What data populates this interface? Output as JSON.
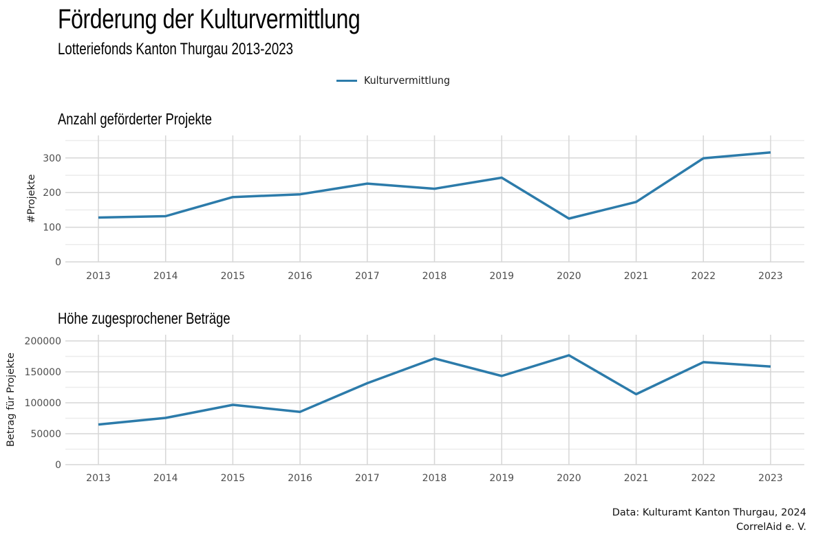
{
  "title": "Förderung der Kulturvermittlung",
  "subtitle": "Lotteriefonds Kanton Thurgau 2013-2023",
  "legend": {
    "label": "Kulturvermittlung",
    "color": "#2c7baa"
  },
  "caption": {
    "line1": "Data: Kulturamt Kanton Thurgau, 2024",
    "line2": "CorrelAid e. V."
  },
  "colors": {
    "line": "#2c7baa",
    "grid_major": "#d6d6d6",
    "grid_minor": "#ececec",
    "tick_text": "#4d4d4d"
  },
  "chart_data": [
    {
      "type": "line",
      "title": "Anzahl geförderter Projekte",
      "xlabel": "",
      "ylabel": "#Projekte",
      "categories": [
        "2013",
        "2014",
        "2015",
        "2016",
        "2017",
        "2018",
        "2019",
        "2020",
        "2021",
        "2022",
        "2023"
      ],
      "series": [
        {
          "name": "Kulturvermittlung",
          "values": [
            128,
            132,
            187,
            195,
            226,
            211,
            243,
            125,
            173,
            299,
            316
          ]
        }
      ],
      "ylim": [
        0,
        365
      ],
      "yticks": [
        0,
        100,
        200,
        300
      ],
      "ytick_labels": [
        "0",
        "100",
        "200",
        "300"
      ],
      "grid": true
    },
    {
      "type": "line",
      "title": "Höhe zugesprochener Beträge",
      "xlabel": "",
      "ylabel": "Betrag für Projekte",
      "categories": [
        "2013",
        "2014",
        "2015",
        "2016",
        "2017",
        "2018",
        "2019",
        "2020",
        "2021",
        "2022",
        "2023"
      ],
      "series": [
        {
          "name": "Kulturvermittlung",
          "values": [
            64900,
            75600,
            96700,
            85300,
            131700,
            171700,
            143300,
            176800,
            113900,
            165700,
            158700
          ]
        }
      ],
      "ylim": [
        0,
        210000
      ],
      "yticks": [
        0,
        50000,
        100000,
        150000,
        200000
      ],
      "ytick_labels": [
        "0",
        "50000",
        "100000",
        "150000",
        "200000"
      ],
      "grid": true
    }
  ]
}
